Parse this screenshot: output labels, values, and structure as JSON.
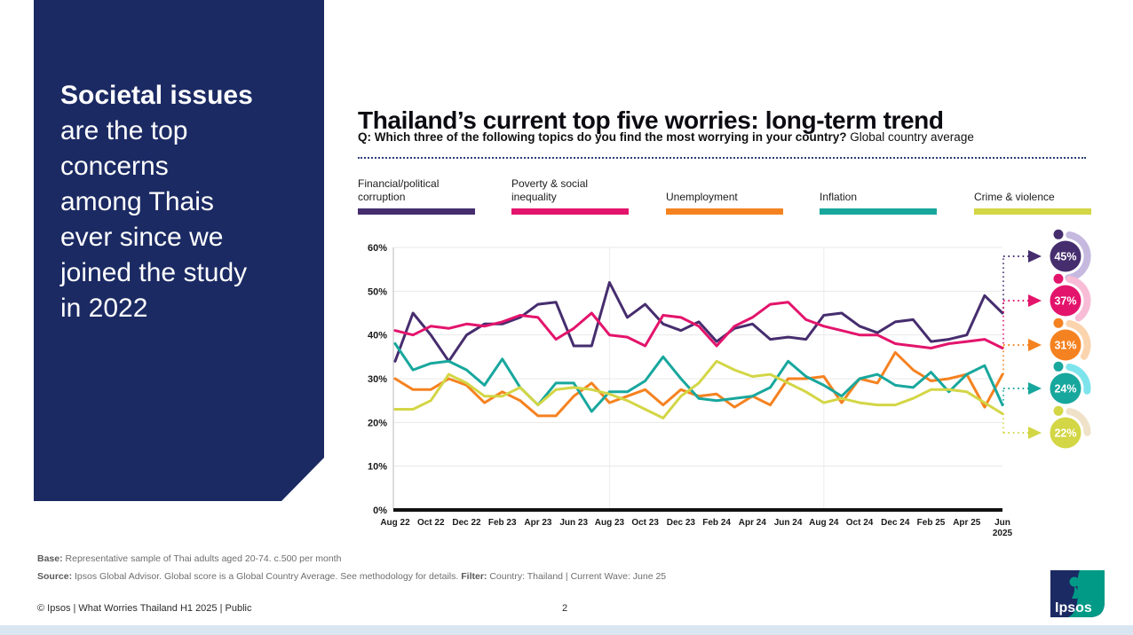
{
  "sidebar": {
    "highlight": "Societal issues",
    "lines": [
      "are the top",
      "concerns",
      "among Thais",
      "ever since we",
      "joined the study",
      "in 2022"
    ]
  },
  "header": {
    "title": "Thailand’s current top five worries: long-term trend",
    "question_bold": "Q:  Which three of the following topics do you find the most worrying in your country?",
    "question_regular": " Global country average"
  },
  "chart_data": {
    "type": "line",
    "title": "Thailand's current top five worries: long-term trend",
    "ylim": [
      0,
      60
    ],
    "yticks": [
      "0%",
      "10%",
      "20%",
      "30%",
      "40%",
      "50%",
      "60%"
    ],
    "grid": "horizontal, light vertical rules at Aug 23 and Aug 24",
    "legend_position": "top",
    "x_labels": [
      "Aug 22",
      "Oct 22",
      "Dec 22",
      "Feb 23",
      "Apr 23",
      "Jun 23",
      "Aug 23",
      "Oct 23",
      "Dec 23",
      "Feb 24",
      "Apr 24",
      "Jun 24",
      "Aug 24",
      "Oct 24",
      "Dec 24",
      "Feb 25",
      "Apr 25",
      "Jun\n2025"
    ],
    "months": [
      "Aug 22",
      "Sep 22",
      "Oct 22",
      "Nov 22",
      "Dec 22",
      "Jan 23",
      "Feb 23",
      "Mar 23",
      "Apr 23",
      "May 23",
      "Jun 23",
      "Jul 23",
      "Aug 23",
      "Sep 23",
      "Oct 23",
      "Nov 23",
      "Dec 23",
      "Jan 24",
      "Feb 24",
      "Mar 24",
      "Apr 24",
      "May 24",
      "Jun 24",
      "Jul 24",
      "Aug 24",
      "Sep 24",
      "Oct 24",
      "Nov 24",
      "Dec 24",
      "Jan 25",
      "Feb 25",
      "Mar 25",
      "Apr 25",
      "May 25",
      "Jun 25"
    ],
    "year_gridline_indices": [
      12,
      24
    ],
    "series": [
      {
        "name": "Financial/political corruption",
        "color": "#462d6e",
        "light": "#c6b9e0",
        "end_label": "45%",
        "end_value": 45,
        "values": [
          34,
          45,
          40,
          34,
          40,
          42.5,
          42.5,
          44,
          47,
          47.5,
          37.5,
          37.5,
          52,
          44,
          47,
          42.5,
          41,
          43,
          38.5,
          41.5,
          42.5,
          39,
          39.5,
          39,
          44.5,
          45,
          42,
          40.5,
          43,
          43.5,
          38.5,
          39,
          40,
          49,
          45
        ]
      },
      {
        "name": "Poverty & social inequality",
        "color": "#e3146c",
        "light": "#f8bcd7",
        "end_label": "37%",
        "end_value": 37,
        "values": [
          41,
          40,
          42,
          41.5,
          42.5,
          42,
          43,
          44.5,
          44,
          39,
          41.5,
          45,
          40,
          39.5,
          37.5,
          44.5,
          44,
          42,
          37.5,
          42,
          44,
          47,
          47.5,
          43.5,
          42,
          41,
          40,
          40,
          38,
          37.5,
          37,
          38,
          38.5,
          39,
          37
        ]
      },
      {
        "name": "Unemployment",
        "color": "#f58220",
        "light": "#fbd4ae",
        "end_label": "31%",
        "end_value": 31,
        "values": [
          30,
          27.5,
          27.5,
          30,
          28.5,
          24.5,
          27,
          25,
          21.5,
          21.5,
          26,
          29,
          24.5,
          26,
          27.5,
          24,
          27.5,
          26,
          26.5,
          23.5,
          26,
          24,
          30,
          30,
          30.5,
          24.5,
          30,
          29,
          36,
          32,
          29.5,
          30,
          31,
          23.5,
          31
        ]
      },
      {
        "name": "Inflation",
        "color": "#18a79d",
        "light": "#7de4ec",
        "end_label": "24%",
        "end_value": 24,
        "values": [
          38,
          32,
          33.5,
          34,
          32,
          28.5,
          34.5,
          28,
          24,
          29,
          29,
          22.5,
          27,
          27,
          29.5,
          35,
          30,
          25.5,
          25,
          25.5,
          26,
          28,
          34,
          30.5,
          28.5,
          26,
          30,
          31,
          28.5,
          28,
          31.5,
          27,
          31,
          33,
          24
        ]
      },
      {
        "name": "Crime & violence",
        "color": "#d3d645",
        "light": "#f0e2c9",
        "end_label": "22%",
        "end_value": 22,
        "values": [
          23,
          23,
          25,
          31,
          29,
          26,
          26,
          28,
          24,
          27.5,
          28,
          27.5,
          26.5,
          25,
          23,
          21,
          26,
          29,
          34,
          32,
          30.5,
          31,
          29,
          27,
          24.5,
          25.5,
          24.5,
          24,
          24,
          25.5,
          27.5,
          27.5,
          27,
          24.5,
          22
        ]
      }
    ]
  },
  "footer": {
    "base_label": "Base:",
    "base_text": " Representative sample of Thai adults aged 20-74. c.500 per month",
    "source_label": "Source:",
    "source_text": " Ipsos Global Advisor. Global score is a Global Country Average. See methodology for details. ",
    "filter_label": "Filter:",
    "filter_text": " Country: Thailand | Current Wave: June 25",
    "copyright": "© Ipsos | What Worries Thailand H1 2025 | Public",
    "page_number": "2",
    "logo_text": "Ipsos"
  }
}
